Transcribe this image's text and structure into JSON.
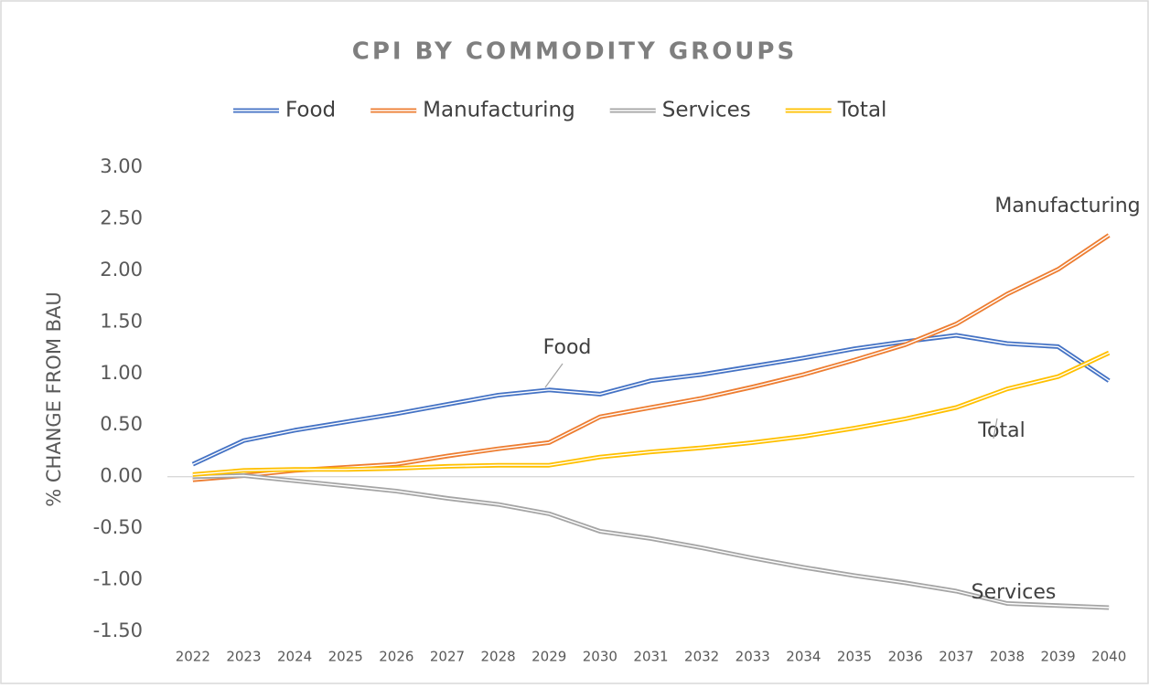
{
  "chart_data": {
    "type": "line",
    "title": "CPI BY COMMODITY GROUPS",
    "y_label": "% CHANGE FROM BAU",
    "categories": [
      "2022",
      "2023",
      "2024",
      "2025",
      "2026",
      "2027",
      "2028",
      "2029",
      "2030",
      "2031",
      "2032",
      "2033",
      "2034",
      "2035",
      "2036",
      "2037",
      "2038",
      "2039",
      "2040"
    ],
    "series": [
      {
        "name": "Food",
        "color": "#4472c4",
        "values": [
          0.12,
          0.35,
          0.45,
          0.53,
          0.61,
          0.7,
          0.79,
          0.84,
          0.8,
          0.93,
          0.99,
          1.07,
          1.15,
          1.24,
          1.31,
          1.37,
          1.29,
          1.26,
          0.93
        ]
      },
      {
        "name": "Manufacturing",
        "color": "#ed7d31",
        "values": [
          -0.03,
          0.01,
          0.06,
          0.09,
          0.12,
          0.2,
          0.27,
          0.33,
          0.58,
          0.67,
          0.76,
          0.87,
          0.99,
          1.13,
          1.28,
          1.48,
          1.77,
          2.01,
          2.34
        ]
      },
      {
        "name": "Services",
        "color": "#a5a5a5",
        "values": [
          0.0,
          0.01,
          -0.04,
          -0.09,
          -0.14,
          -0.21,
          -0.27,
          -0.36,
          -0.53,
          -0.6,
          -0.69,
          -0.79,
          -0.88,
          -0.96,
          -1.03,
          -1.11,
          -1.23,
          -1.25,
          -1.27
        ]
      },
      {
        "name": "Total",
        "color": "#ffc000",
        "values": [
          0.02,
          0.06,
          0.07,
          0.07,
          0.08,
          0.1,
          0.11,
          0.11,
          0.19,
          0.24,
          0.28,
          0.33,
          0.39,
          0.47,
          0.56,
          0.67,
          0.85,
          0.97,
          1.2
        ]
      }
    ],
    "annotations": [
      "Food",
      "Manufacturing",
      "Total",
      "Services"
    ],
    "ylim": [
      -1.5,
      3
    ],
    "yticks": [
      {
        "value": 3,
        "label": "3.00"
      },
      {
        "value": 2.5,
        "label": "2.50"
      },
      {
        "value": 2,
        "label": "2.00"
      },
      {
        "value": 1.5,
        "label": "1.50"
      },
      {
        "value": 1,
        "label": "1.00"
      },
      {
        "value": 0.5,
        "label": "0.50"
      },
      {
        "value": 0,
        "label": "0.00"
      },
      {
        "value": -0.5,
        "label": "-0.50"
      },
      {
        "value": -1,
        "label": "-1.00"
      },
      {
        "value": -1.5,
        "label": "-1.50"
      }
    ],
    "grid": false,
    "legend": "top"
  }
}
